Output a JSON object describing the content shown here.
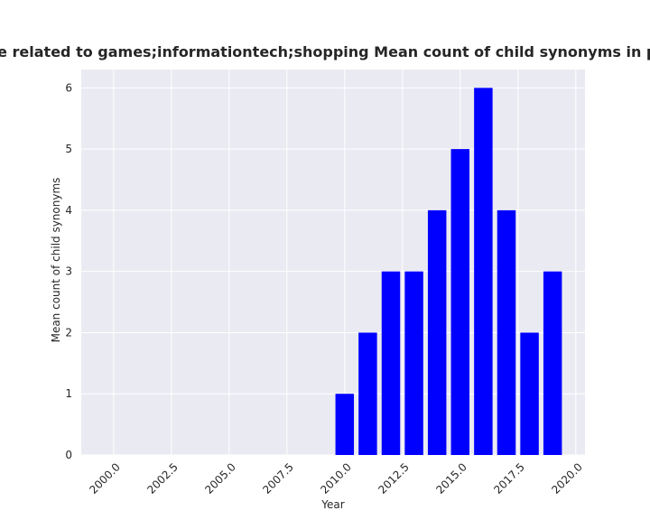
{
  "chart_data": {
    "type": "bar",
    "title": "ries are related to games;informationtech;shopping Mean count of child synonyms in privacy p",
    "xlabel": "Year",
    "ylabel": "Mean count of child synonyms",
    "x": [
      2010,
      2011,
      2012,
      2013,
      2014,
      2015,
      2016,
      2017,
      2018,
      2019
    ],
    "values": [
      1,
      2,
      3,
      3,
      4,
      5,
      6,
      4,
      2,
      3
    ],
    "xlim": [
      1998.6,
      2020.4
    ],
    "ylim": [
      0,
      6.3
    ],
    "xticks": [
      "2000.0",
      "2002.5",
      "2005.0",
      "2007.5",
      "2010.0",
      "2012.5",
      "2015.0",
      "2017.5",
      "2020.0"
    ],
    "xtick_values": [
      2000,
      2002.5,
      2005,
      2007.5,
      2010,
      2012.5,
      2015,
      2017.5,
      2020
    ],
    "yticks": [
      "0",
      "1",
      "2",
      "3",
      "4",
      "5",
      "6"
    ],
    "ytick_values": [
      0,
      1,
      2,
      3,
      4,
      5,
      6
    ],
    "bar_color": "#0000ff",
    "background_color": "#eaeaf2",
    "grid": true
  }
}
